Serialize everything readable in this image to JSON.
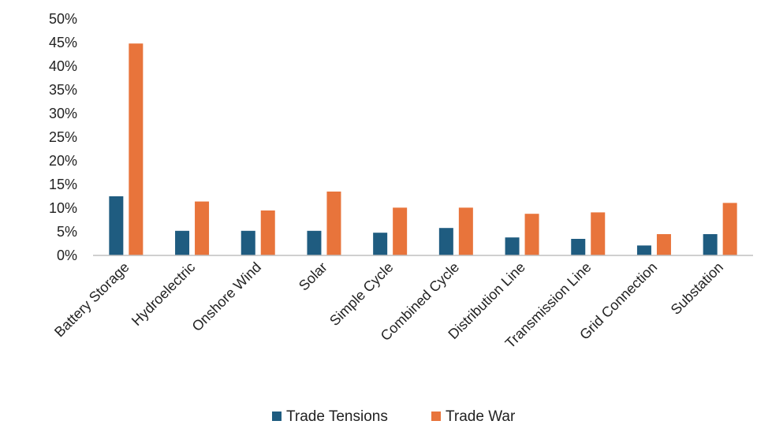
{
  "chart_data": {
    "type": "bar",
    "categories": [
      "Battery Storage",
      "Hydroelectric",
      "Onshore Wind",
      "Solar",
      "Simple Cycle",
      "Combined Cycle",
      "Distribution Line",
      "Transmission Line",
      "Grid Connection",
      "Substation"
    ],
    "series": [
      {
        "name": "Trade Tensions",
        "color": "#1F5C80",
        "values": [
          12.5,
          5.2,
          5.2,
          5.2,
          4.8,
          5.8,
          3.8,
          3.5,
          2.1,
          4.5
        ]
      },
      {
        "name": "Trade War",
        "color": "#E8743B",
        "values": [
          44.8,
          11.4,
          9.5,
          13.5,
          10.1,
          10.1,
          8.8,
          9.1,
          4.5,
          11.1
        ]
      }
    ],
    "yticks": [
      "0%",
      "5%",
      "10%",
      "15%",
      "20%",
      "25%",
      "30%",
      "35%",
      "40%",
      "45%",
      "50%"
    ],
    "ylim": [
      0,
      50
    ],
    "grid": false,
    "legend_position": "bottom"
  }
}
